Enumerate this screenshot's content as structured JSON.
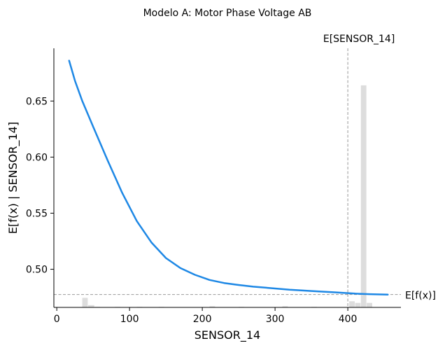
{
  "chart_data": {
    "type": "line",
    "title": "Modelo A: Motor Phase Voltage AB",
    "xlabel": "SENSOR_14",
    "ylabel": "E[f(x) | SENSOR_14]",
    "xlim": [
      -4,
      473
    ],
    "ylim": [
      0.466,
      0.697
    ],
    "x_ticks": [
      0,
      100,
      200,
      300,
      400
    ],
    "y_ticks": [
      0.5,
      0.55,
      0.6,
      0.65
    ],
    "x_tick_labels": [
      "0",
      "100",
      "200",
      "300",
      "400"
    ],
    "y_tick_labels": [
      "0.50",
      "0.55",
      "0.60",
      "0.65"
    ],
    "series": [
      {
        "color": "#1E88E5",
        "x": [
          17,
          25,
          35,
          50,
          70,
          90,
          110,
          130,
          150,
          170,
          190,
          210,
          230,
          250,
          270,
          290,
          320,
          350,
          380,
          410,
          430,
          455
        ],
        "y": [
          0.686,
          0.668,
          0.65,
          0.627,
          0.597,
          0.568,
          0.543,
          0.524,
          0.51,
          0.501,
          0.495,
          0.4905,
          0.4877,
          0.486,
          0.4845,
          0.4834,
          0.4818,
          0.4806,
          0.4795,
          0.4783,
          0.4778,
          0.4774
        ]
      }
    ],
    "reference_lines": [
      {
        "axis": "x",
        "value": 400,
        "label": "E[SENSOR_14]",
        "color": "#999999",
        "style": "dashed"
      },
      {
        "axis": "y",
        "value": 0.4775,
        "label": "E[f(x)]",
        "color": "#999999",
        "style": "dashed"
      }
    ],
    "histogram": {
      "color": "#dddddd",
      "bins": [
        {
          "x0": 35,
          "x1": 43,
          "h": 0.0085
        },
        {
          "x0": 43,
          "x1": 52,
          "h": 0.002
        },
        {
          "x0": 52,
          "x1": 60,
          "h": 0.0005
        },
        {
          "x0": 80,
          "x1": 88,
          "h": 0.0005
        },
        {
          "x0": 110,
          "x1": 118,
          "h": 0.0005
        },
        {
          "x0": 140,
          "x1": 148,
          "h": 0.0005
        },
        {
          "x0": 210,
          "x1": 218,
          "h": 0.001
        },
        {
          "x0": 250,
          "x1": 258,
          "h": 0.0005
        },
        {
          "x0": 310,
          "x1": 318,
          "h": 0.001
        },
        {
          "x0": 350,
          "x1": 358,
          "h": 0.0005
        },
        {
          "x0": 402,
          "x1": 410,
          "h": 0.0055
        },
        {
          "x0": 410,
          "x1": 418,
          "h": 0.004
        },
        {
          "x0": 418,
          "x1": 426,
          "h": 0.198
        },
        {
          "x0": 426,
          "x1": 434,
          "h": 0.004
        }
      ]
    },
    "grid": false,
    "legend": "none"
  }
}
